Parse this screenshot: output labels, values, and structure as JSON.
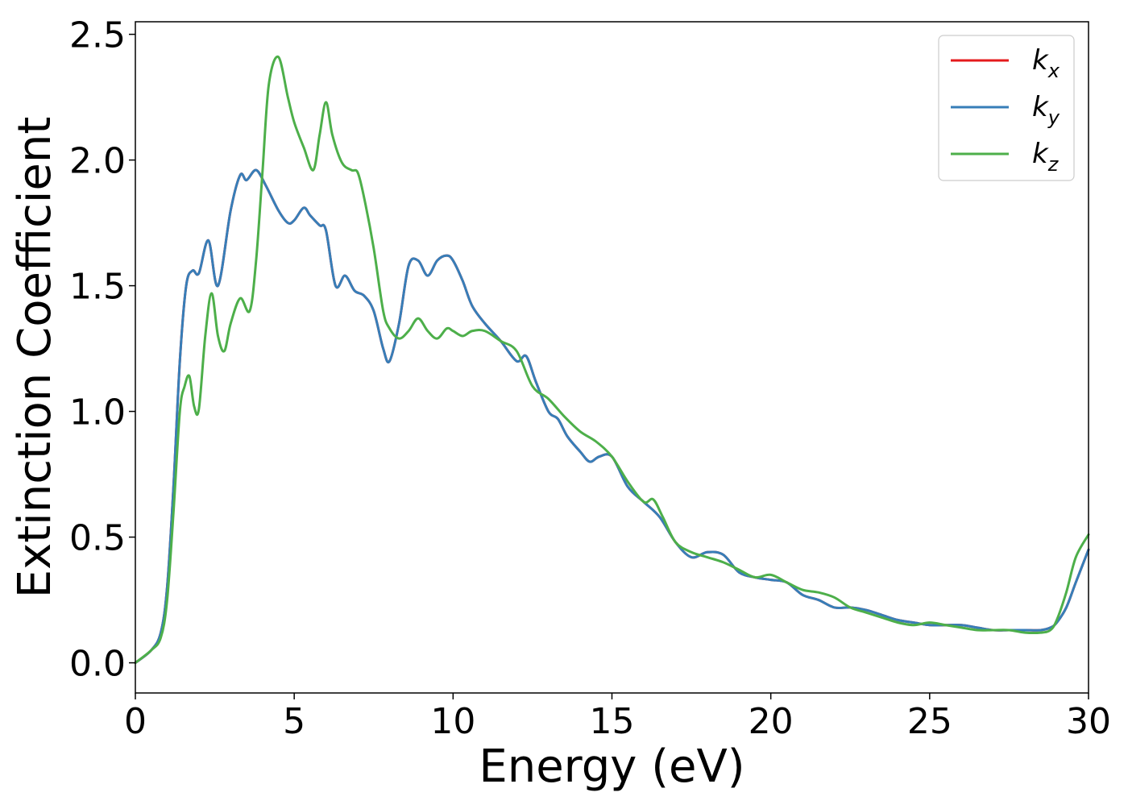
{
  "chart_data": {
    "type": "line",
    "title": "",
    "xlabel": "Energy (eV)",
    "ylabel": "Extinction Coefficient",
    "xlim": [
      0,
      30
    ],
    "ylim": [
      -0.12,
      2.55
    ],
    "xticks": [
      0,
      5,
      10,
      15,
      20,
      25,
      30
    ],
    "yticks": [
      0.0,
      0.5,
      1.0,
      1.5,
      2.0,
      2.5
    ],
    "xtick_labels": [
      "0",
      "5",
      "10",
      "15",
      "20",
      "25",
      "30"
    ],
    "ytick_labels": [
      "0.0",
      "0.5",
      "1.0",
      "1.5",
      "2.0",
      "2.5"
    ],
    "grid": false,
    "legend_position": "top-right",
    "series": [
      {
        "name": "k_x",
        "label_base": "k",
        "label_sub": "x",
        "color": "#e41a1c",
        "x": [
          0,
          0.5,
          0.8,
          1.0,
          1.2,
          1.4,
          1.6,
          1.8,
          2.0,
          2.3,
          2.6,
          3.0,
          3.3,
          3.5,
          3.8,
          4.1,
          4.5,
          4.8,
          5.0,
          5.3,
          5.5,
          5.8,
          6.0,
          6.3,
          6.6,
          6.9,
          7.2,
          7.5,
          7.8,
          8.0,
          8.3,
          8.6,
          8.9,
          9.2,
          9.5,
          9.8,
          10.0,
          10.3,
          10.6,
          11.0,
          11.5,
          12.0,
          12.3,
          12.6,
          13.0,
          13.3,
          13.6,
          14.0,
          14.3,
          14.6,
          15.0,
          15.5,
          16.0,
          16.5,
          17.0,
          17.5,
          18.0,
          18.5,
          19.0,
          19.5,
          20.0,
          20.5,
          21.0,
          21.5,
          22.0,
          22.5,
          23.0,
          23.5,
          24.0,
          24.5,
          25.0,
          25.5,
          26.0,
          26.5,
          27.0,
          27.5,
          28.0,
          28.5,
          28.8,
          29.0,
          29.3,
          29.6,
          30.0
        ],
        "values": [
          0.0,
          0.05,
          0.12,
          0.3,
          0.7,
          1.2,
          1.5,
          1.56,
          1.55,
          1.68,
          1.5,
          1.8,
          1.94,
          1.92,
          1.96,
          1.9,
          1.8,
          1.75,
          1.76,
          1.81,
          1.78,
          1.74,
          1.72,
          1.5,
          1.54,
          1.48,
          1.46,
          1.4,
          1.25,
          1.2,
          1.35,
          1.58,
          1.6,
          1.54,
          1.6,
          1.62,
          1.6,
          1.52,
          1.42,
          1.35,
          1.28,
          1.2,
          1.22,
          1.12,
          1.0,
          0.97,
          0.9,
          0.84,
          0.8,
          0.82,
          0.82,
          0.7,
          0.64,
          0.58,
          0.48,
          0.42,
          0.44,
          0.43,
          0.36,
          0.34,
          0.33,
          0.32,
          0.27,
          0.25,
          0.22,
          0.22,
          0.21,
          0.19,
          0.17,
          0.16,
          0.15,
          0.15,
          0.15,
          0.14,
          0.13,
          0.13,
          0.13,
          0.13,
          0.14,
          0.16,
          0.22,
          0.32,
          0.45
        ]
      },
      {
        "name": "k_y",
        "label_base": "k",
        "label_sub": "y",
        "color": "#377eb8",
        "x": [
          0,
          0.5,
          0.8,
          1.0,
          1.2,
          1.4,
          1.6,
          1.8,
          2.0,
          2.3,
          2.6,
          3.0,
          3.3,
          3.5,
          3.8,
          4.1,
          4.5,
          4.8,
          5.0,
          5.3,
          5.5,
          5.8,
          6.0,
          6.3,
          6.6,
          6.9,
          7.2,
          7.5,
          7.8,
          8.0,
          8.3,
          8.6,
          8.9,
          9.2,
          9.5,
          9.8,
          10.0,
          10.3,
          10.6,
          11.0,
          11.5,
          12.0,
          12.3,
          12.6,
          13.0,
          13.3,
          13.6,
          14.0,
          14.3,
          14.6,
          15.0,
          15.5,
          16.0,
          16.5,
          17.0,
          17.5,
          18.0,
          18.5,
          19.0,
          19.5,
          20.0,
          20.5,
          21.0,
          21.5,
          22.0,
          22.5,
          23.0,
          23.5,
          24.0,
          24.5,
          25.0,
          25.5,
          26.0,
          26.5,
          27.0,
          27.5,
          28.0,
          28.5,
          28.8,
          29.0,
          29.3,
          29.6,
          30.0
        ],
        "values": [
          0.0,
          0.05,
          0.12,
          0.3,
          0.7,
          1.2,
          1.5,
          1.56,
          1.55,
          1.68,
          1.5,
          1.8,
          1.94,
          1.92,
          1.96,
          1.9,
          1.8,
          1.75,
          1.76,
          1.81,
          1.78,
          1.74,
          1.72,
          1.5,
          1.54,
          1.48,
          1.46,
          1.4,
          1.25,
          1.2,
          1.35,
          1.58,
          1.6,
          1.54,
          1.6,
          1.62,
          1.6,
          1.52,
          1.42,
          1.35,
          1.28,
          1.2,
          1.22,
          1.12,
          1.0,
          0.97,
          0.9,
          0.84,
          0.8,
          0.82,
          0.82,
          0.7,
          0.64,
          0.58,
          0.48,
          0.42,
          0.44,
          0.43,
          0.36,
          0.34,
          0.33,
          0.32,
          0.27,
          0.25,
          0.22,
          0.22,
          0.21,
          0.19,
          0.17,
          0.16,
          0.15,
          0.15,
          0.15,
          0.14,
          0.13,
          0.13,
          0.13,
          0.13,
          0.14,
          0.16,
          0.22,
          0.32,
          0.45
        ]
      },
      {
        "name": "k_z",
        "label_base": "k",
        "label_sub": "z",
        "color": "#4daf4a",
        "x": [
          0,
          0.5,
          0.8,
          1.0,
          1.2,
          1.4,
          1.55,
          1.7,
          1.85,
          2.0,
          2.2,
          2.4,
          2.6,
          2.8,
          3.0,
          3.3,
          3.6,
          3.8,
          4.0,
          4.2,
          4.5,
          4.8,
          5.0,
          5.3,
          5.6,
          5.8,
          6.0,
          6.2,
          6.5,
          6.8,
          7.0,
          7.2,
          7.5,
          7.8,
          8.0,
          8.3,
          8.6,
          8.9,
          9.2,
          9.5,
          9.8,
          10.0,
          10.3,
          10.6,
          11.0,
          11.5,
          12.0,
          12.5,
          13.0,
          13.5,
          14.0,
          14.5,
          15.0,
          15.5,
          16.0,
          16.3,
          16.6,
          17.0,
          17.5,
          18.0,
          18.5,
          19.0,
          19.5,
          20.0,
          20.5,
          21.0,
          21.5,
          22.0,
          22.5,
          23.0,
          23.5,
          24.0,
          24.5,
          25.0,
          25.5,
          26.0,
          26.5,
          27.0,
          27.5,
          28.0,
          28.5,
          28.8,
          29.0,
          29.3,
          29.6,
          30.0
        ],
        "values": [
          0.0,
          0.05,
          0.1,
          0.25,
          0.6,
          1.0,
          1.1,
          1.14,
          1.02,
          1.01,
          1.3,
          1.47,
          1.3,
          1.24,
          1.35,
          1.45,
          1.4,
          1.6,
          1.95,
          2.3,
          2.41,
          2.25,
          2.15,
          2.05,
          1.96,
          2.1,
          2.23,
          2.1,
          1.99,
          1.96,
          1.95,
          1.85,
          1.65,
          1.4,
          1.33,
          1.29,
          1.32,
          1.37,
          1.32,
          1.29,
          1.33,
          1.32,
          1.3,
          1.32,
          1.32,
          1.28,
          1.24,
          1.1,
          1.05,
          0.98,
          0.92,
          0.88,
          0.82,
          0.72,
          0.64,
          0.65,
          0.58,
          0.48,
          0.44,
          0.42,
          0.4,
          0.37,
          0.34,
          0.35,
          0.32,
          0.29,
          0.28,
          0.26,
          0.22,
          0.2,
          0.18,
          0.16,
          0.15,
          0.16,
          0.15,
          0.14,
          0.13,
          0.13,
          0.13,
          0.12,
          0.12,
          0.13,
          0.17,
          0.28,
          0.42,
          0.51
        ]
      }
    ]
  }
}
